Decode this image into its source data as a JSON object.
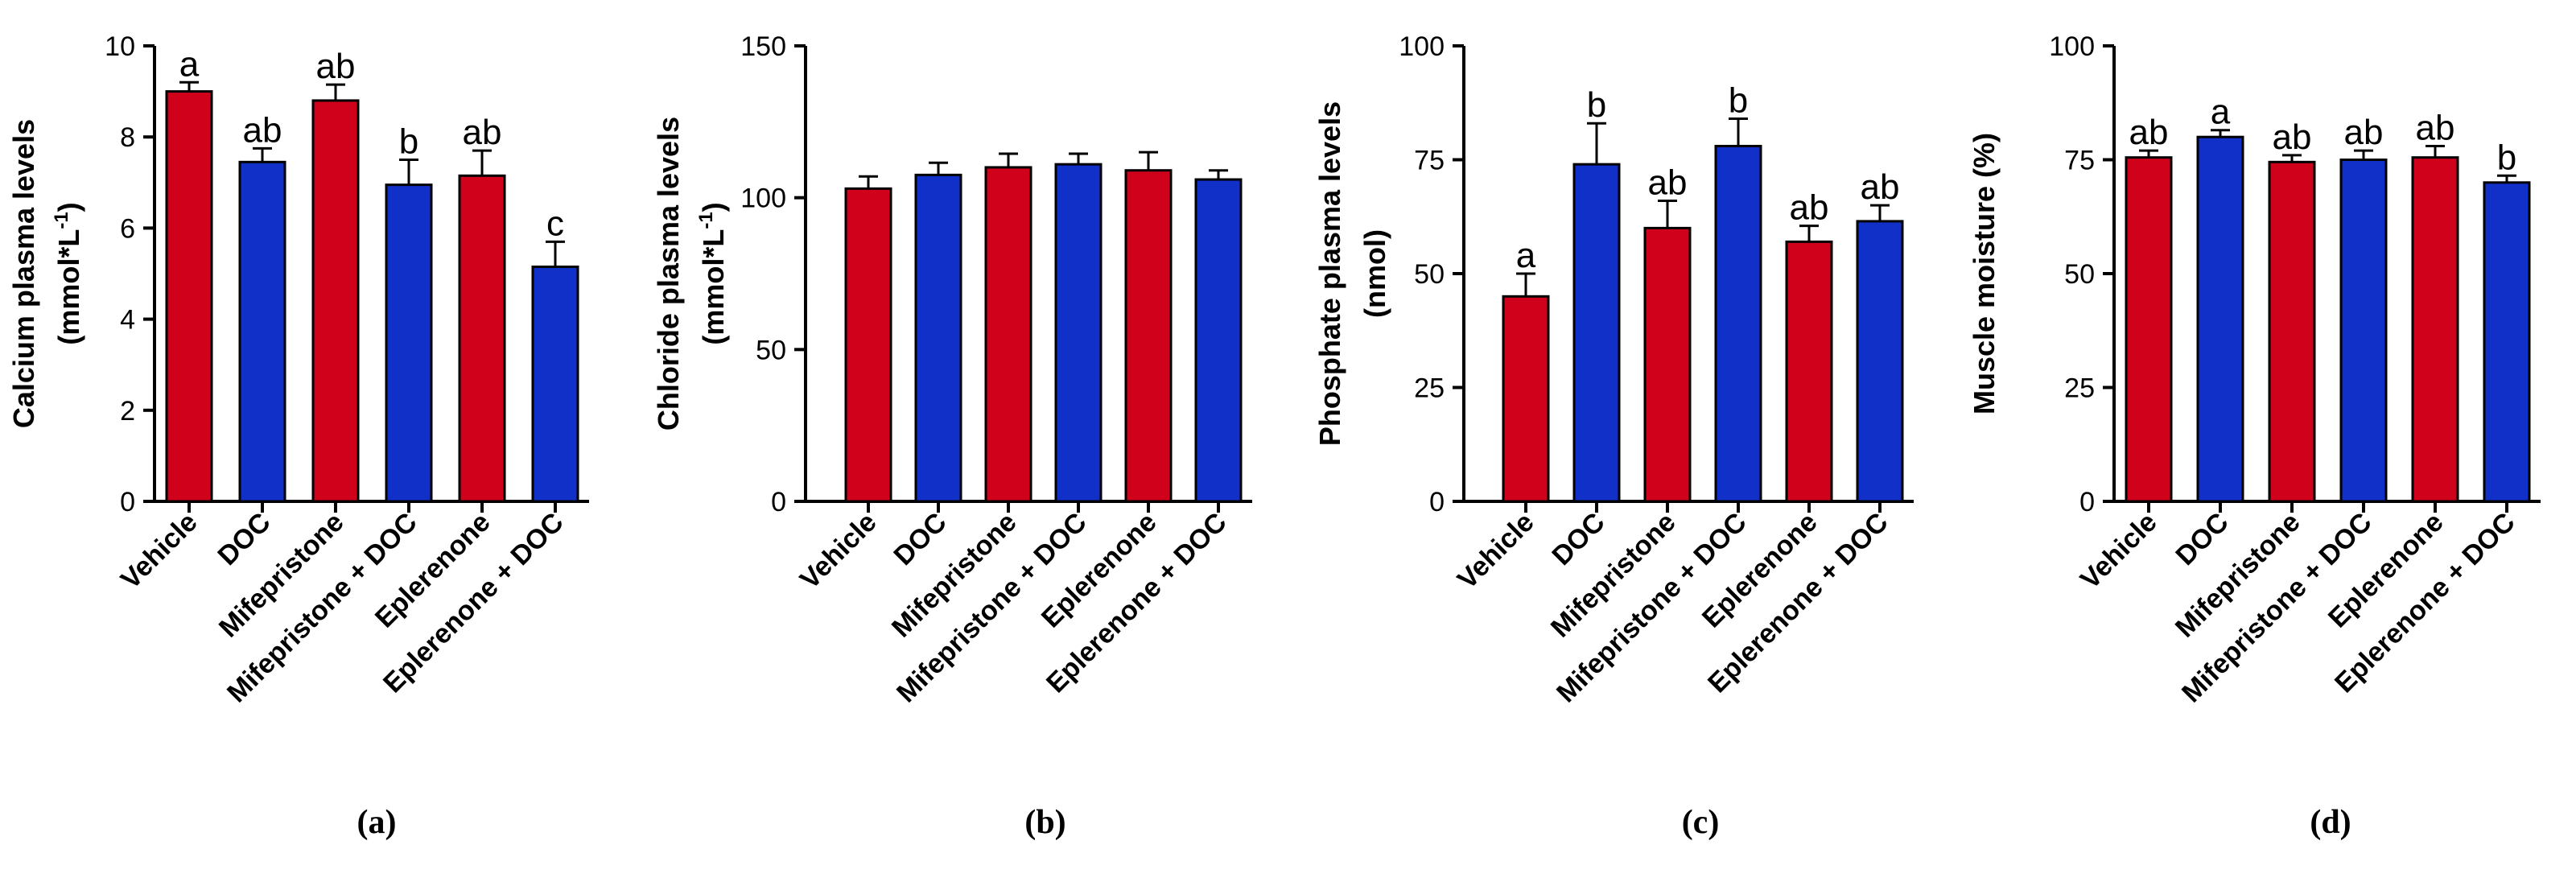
{
  "colors": {
    "red": "#d0021b",
    "blue": "#1030c8"
  },
  "chart_data": [
    {
      "type": "bar",
      "panel_label": "(a)",
      "ylabel_line1": "Calcium plasma levels",
      "ylabel_line2": "(mmol*L",
      "ylabel_sup": "-1",
      "ylabel_close": ")",
      "categories": [
        "Vehicle",
        "DOC",
        "Mifepristone",
        "Mifepristone + DOC",
        "Eplerenone",
        "Eplerenone + DOC"
      ],
      "values": [
        9.0,
        7.45,
        8.8,
        6.95,
        7.15,
        5.15
      ],
      "errors": [
        0.2,
        0.3,
        0.35,
        0.55,
        0.55,
        0.55
      ],
      "significance": [
        "a",
        "ab",
        "ab",
        "b",
        "ab",
        "c"
      ],
      "bar_colors": [
        "red",
        "blue",
        "red",
        "blue",
        "red",
        "blue"
      ],
      "ylim": [
        0,
        10
      ],
      "yticks": [
        0,
        2,
        4,
        6,
        8,
        10
      ],
      "ytick_labels": [
        "0",
        "2",
        "4",
        "6",
        "8",
        "10"
      ]
    },
    {
      "type": "bar",
      "panel_label": "(b)",
      "ylabel_line1": "Chloride plasma levels",
      "ylabel_line2": "(mmol*L",
      "ylabel_sup": "-1",
      "ylabel_close": ")",
      "categories": [
        "Vehicle",
        "DOC",
        "Mifepristone",
        "Mifepristone + DOC",
        "Eplerenone",
        "Eplerenone + DOC"
      ],
      "values": [
        103,
        107.5,
        110,
        111,
        109,
        106
      ],
      "errors": [
        4,
        4,
        4.5,
        3.5,
        6,
        3
      ],
      "significance": [
        "",
        "",
        "",
        "",
        "",
        ""
      ],
      "bar_colors": [
        "red",
        "blue",
        "red",
        "blue",
        "red",
        "blue"
      ],
      "ylim": [
        0,
        150
      ],
      "yticks": [
        0,
        50,
        100,
        150
      ],
      "ytick_labels": [
        "0",
        "50",
        "100",
        "150"
      ]
    },
    {
      "type": "bar",
      "panel_label": "(c)",
      "ylabel_line1": "Phosphate plasma levels",
      "ylabel_line2": "(nmol)",
      "ylabel_sup": "",
      "ylabel_close": "",
      "categories": [
        "Vehicle",
        "DOC",
        "Mifepristone",
        "Mifepristone + DOC",
        "Eplerenone",
        "Eplerenone + DOC"
      ],
      "values": [
        45,
        74,
        60,
        78,
        57,
        61.5
      ],
      "errors": [
        5,
        9,
        6,
        6,
        3.5,
        3.5
      ],
      "significance": [
        "a",
        "b",
        "ab",
        "b",
        "ab",
        "ab"
      ],
      "bar_colors": [
        "red",
        "blue",
        "red",
        "blue",
        "red",
        "blue"
      ],
      "ylim": [
        0,
        100
      ],
      "yticks": [
        0,
        25,
        50,
        75,
        100
      ],
      "ytick_labels": [
        "0",
        "25",
        "50",
        "75",
        "100"
      ]
    },
    {
      "type": "bar",
      "panel_label": "(d)",
      "ylabel_line1": "Muscle moisture (%)",
      "ylabel_line2": "",
      "ylabel_sup": "",
      "ylabel_close": "",
      "categories": [
        "Vehicle",
        "DOC",
        "Mifepristone",
        "Mifepristone + DOC",
        "Eplerenone",
        "Eplerenone + DOC"
      ],
      "values": [
        75.5,
        80,
        74.5,
        75,
        75.5,
        70
      ],
      "errors": [
        1.5,
        1.5,
        1.5,
        2,
        2.5,
        1.5
      ],
      "significance": [
        "ab",
        "a",
        "ab",
        "ab",
        "ab",
        "b"
      ],
      "bar_colors": [
        "red",
        "blue",
        "red",
        "blue",
        "red",
        "blue"
      ],
      "ylim": [
        0,
        100
      ],
      "yticks": [
        0,
        25,
        50,
        75,
        100
      ],
      "ytick_labels": [
        "0",
        "25",
        "50",
        "75",
        "100"
      ]
    }
  ]
}
